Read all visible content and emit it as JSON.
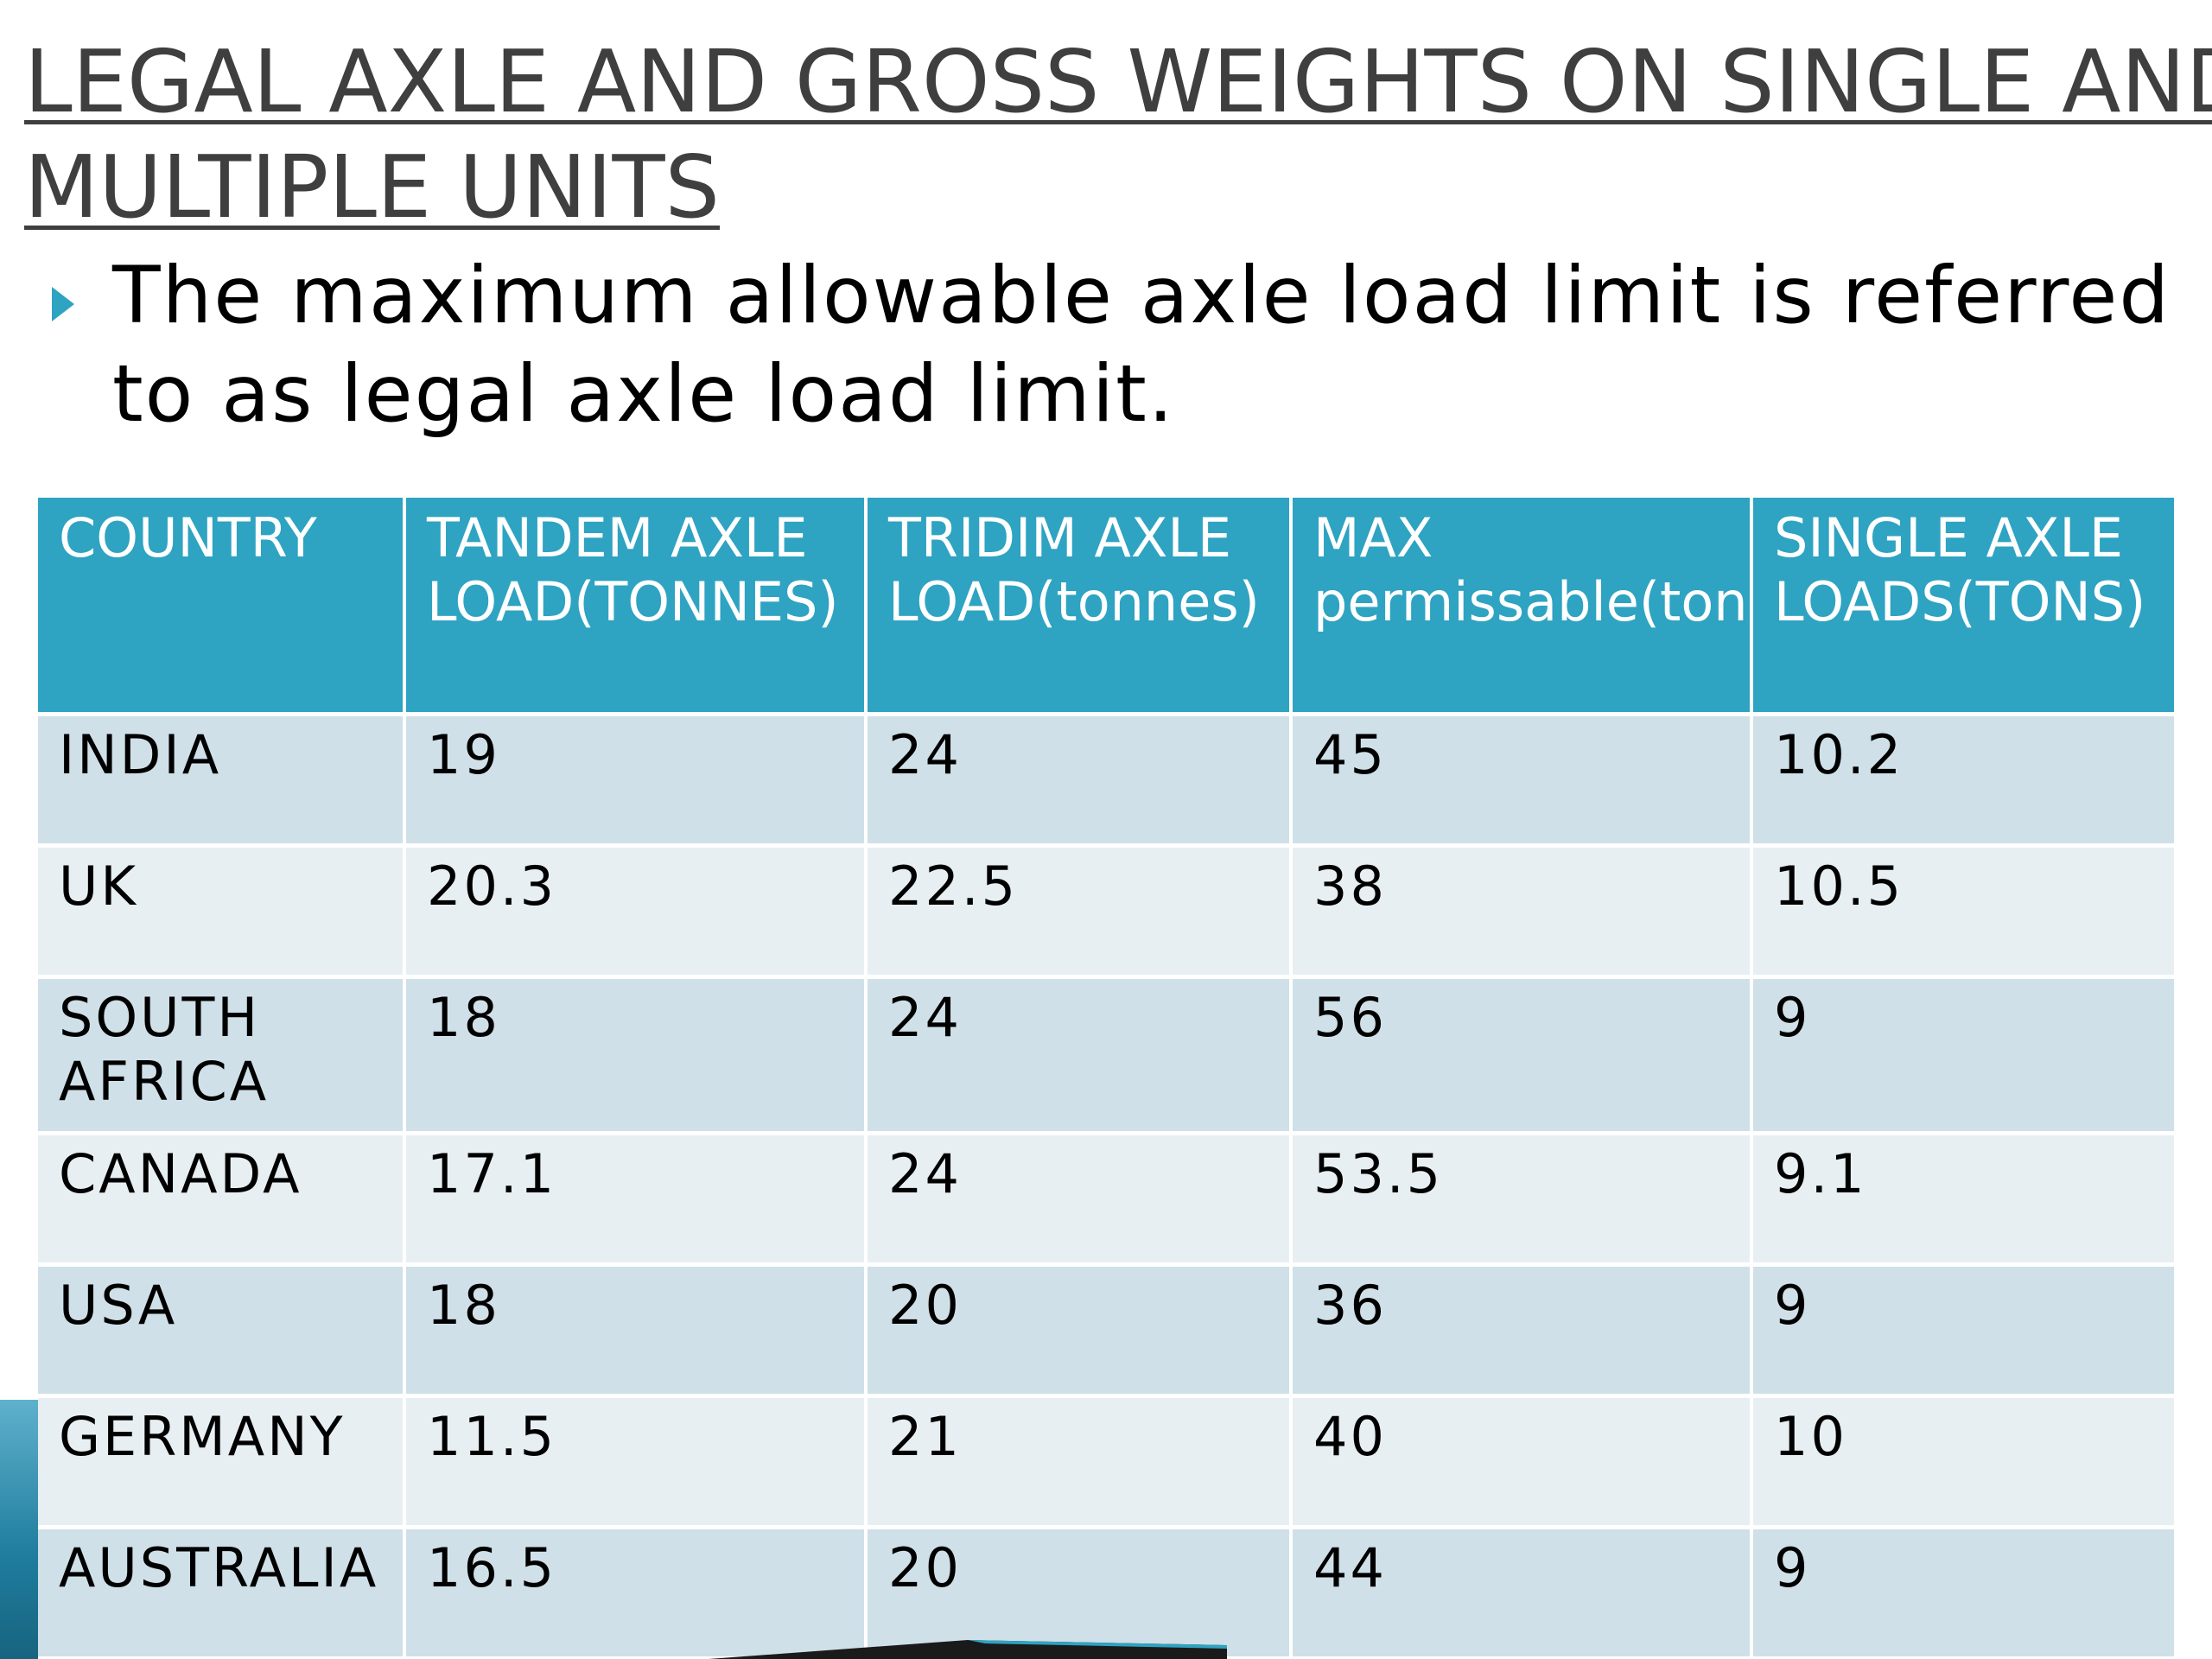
{
  "slide": {
    "title_lines": [
      "LEGAL AXLE  AND GROSS WEIGHTS ON SINGLE AND",
      "MULTIPLE UNITS"
    ],
    "bullet": "The maximum allowable axle load limit is referred to as legal axle load limit.",
    "accent_color": "#2ea3c2",
    "row_color_a": "#cfe0e8",
    "row_color_b": "#e8eff3",
    "bullet_icon": "triangle-right-icon"
  },
  "table": {
    "headers": [
      "COUNTRY",
      "TANDEM AXLE LOAD(TONNES)",
      "TRIDIM AXLE LOAD(tonnes)",
      "MAX permissable(tons)",
      "SINGLE AXLE LOADS(TONS)"
    ],
    "rows": [
      [
        "INDIA",
        "19",
        "24",
        "45",
        "10.2"
      ],
      [
        "UK",
        "20.3",
        "22.5",
        "38",
        "10.5"
      ],
      [
        "SOUTH AFRICA",
        "18",
        "24",
        "56",
        "9"
      ],
      [
        "CANADA",
        "17.1",
        "24",
        "53.5",
        "9.1"
      ],
      [
        "USA",
        "18",
        "20",
        "36",
        "9"
      ],
      [
        "GERMANY",
        "11.5",
        "21",
        "40",
        "10"
      ],
      [
        "AUSTRALIA",
        "16.5",
        "20",
        "44",
        "9"
      ]
    ]
  }
}
